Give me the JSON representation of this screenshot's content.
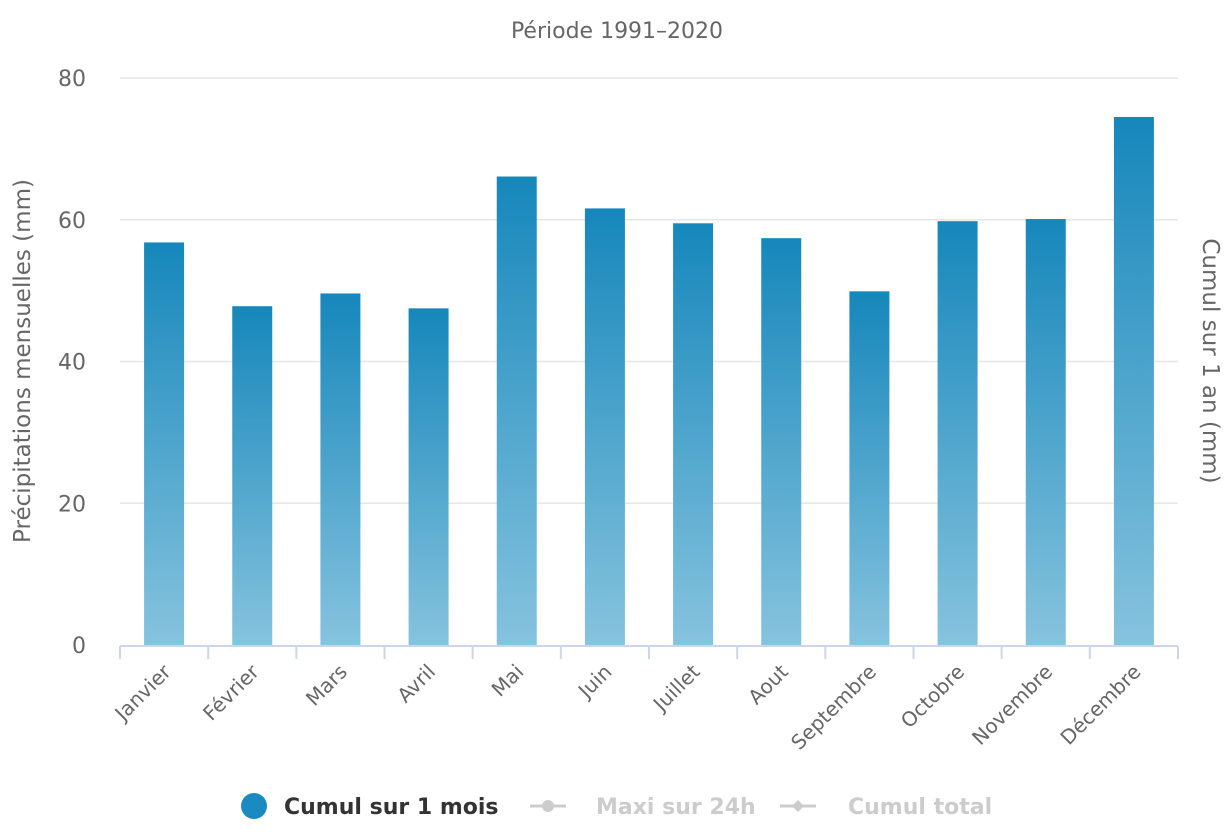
{
  "chart_data": {
    "type": "bar",
    "title": "Période 1991–2020",
    "ylabel": "Précipitations mensuelles (mm)",
    "ylabel_right": "Cumul sur 1 an (mm)",
    "categories": [
      "Janvier",
      "Février",
      "Mars",
      "Avril",
      "Mai",
      "Juin",
      "Juillet",
      "Aout",
      "Septembre",
      "Octobre",
      "Novembre",
      "Décembre"
    ],
    "series": [
      {
        "name": "Cumul sur 1 mois",
        "values": [
          56.8,
          47.8,
          49.6,
          47.5,
          66.1,
          61.6,
          59.5,
          57.4,
          49.9,
          59.8,
          60.1,
          74.5
        ],
        "color": "#1a8ac0"
      }
    ],
    "ylim": [
      0,
      80
    ],
    "yticks": [
      0,
      20,
      40,
      60,
      80
    ],
    "grid": true,
    "legend": [
      {
        "label": "Cumul sur 1 mois",
        "active": true,
        "marker": "circle",
        "color": "#1a8ac0"
      },
      {
        "label": "Maxi sur 24h",
        "active": false,
        "marker": "line-circle",
        "color": "#cccccc"
      },
      {
        "label": "Cumul total",
        "active": false,
        "marker": "line-diamond",
        "color": "#cccccc"
      }
    ],
    "legend_position": "bottom"
  }
}
